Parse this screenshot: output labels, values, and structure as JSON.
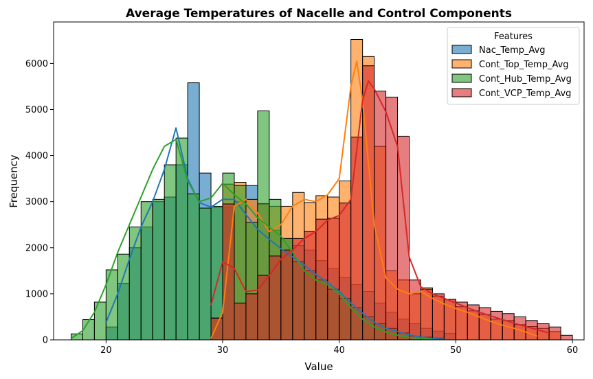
{
  "chart_data": {
    "type": "histogram",
    "title": "Average Temperatures of Nacelle and Control Components",
    "xlabel": "Value",
    "ylabel": "Frequency",
    "xlim": [
      15.5,
      61
    ],
    "ylim": [
      0,
      6900
    ],
    "x_ticks": [
      20,
      30,
      40,
      50,
      60
    ],
    "y_ticks": [
      0,
      1000,
      2000,
      3000,
      4000,
      5000,
      6000
    ],
    "legend": {
      "title": "Features",
      "position": "top-right"
    },
    "bin_width": 1,
    "series": [
      {
        "name": "Nac_Temp_Avg",
        "color": "#1f77b4",
        "bins_start": 20,
        "values": [
          280,
          1230,
          2000,
          2450,
          3000,
          3100,
          3800,
          5580,
          3620,
          2880,
          2880,
          3000,
          3350,
          2960,
          2380,
          2200,
          2050,
          1950,
          1720,
          1550,
          1350,
          1200,
          1050,
          800,
          600,
          450,
          350,
          250,
          190,
          140
        ],
        "kde": [
          [
            20,
            380
          ],
          [
            21,
            1000
          ],
          [
            22,
            1750
          ],
          [
            23,
            2450
          ],
          [
            24,
            3000
          ],
          [
            25,
            3700
          ],
          [
            26,
            4600
          ],
          [
            27,
            3500
          ],
          [
            28,
            2980
          ],
          [
            29,
            2880
          ],
          [
            30,
            3050
          ],
          [
            31,
            3050
          ],
          [
            32,
            2720
          ],
          [
            33,
            2400
          ],
          [
            34,
            2180
          ],
          [
            35,
            1980
          ],
          [
            36,
            1800
          ],
          [
            37,
            1620
          ],
          [
            38,
            1420
          ],
          [
            39,
            1250
          ],
          [
            40,
            1050
          ],
          [
            41,
            800
          ],
          [
            42,
            580
          ],
          [
            43,
            380
          ],
          [
            44,
            250
          ],
          [
            45,
            180
          ],
          [
            46,
            110
          ],
          [
            47,
            60
          ],
          [
            48,
            30
          ],
          [
            49,
            15
          ]
        ]
      },
      {
        "name": "Cont_Top_Temp_Avg",
        "color": "#ff7f0e",
        "bins_start": 29,
        "values": [
          480,
          3380,
          3420,
          3050,
          2950,
          2900,
          2900,
          3200,
          2980,
          3130,
          3100,
          3450,
          6520,
          6150,
          4200,
          1500,
          1300,
          1000,
          1130,
          950,
          880,
          720,
          630,
          550,
          450,
          420,
          330,
          290,
          250,
          180
        ],
        "kde": [
          [
            29,
            30
          ],
          [
            30,
            600
          ],
          [
            31,
            2900
          ],
          [
            32,
            3050
          ],
          [
            33,
            2750
          ],
          [
            34,
            2350
          ],
          [
            35,
            2500
          ],
          [
            36,
            2900
          ],
          [
            37,
            3050
          ],
          [
            38,
            3000
          ],
          [
            39,
            3150
          ],
          [
            40,
            3500
          ],
          [
            41,
            5500
          ],
          [
            41.5,
            6050
          ],
          [
            42,
            5200
          ],
          [
            43,
            2500
          ],
          [
            44,
            1350
          ],
          [
            45,
            1100
          ],
          [
            46,
            1000
          ],
          [
            47,
            1050
          ],
          [
            48,
            900
          ],
          [
            49,
            780
          ],
          [
            50,
            680
          ],
          [
            51,
            600
          ],
          [
            52,
            500
          ],
          [
            53,
            400
          ],
          [
            54,
            320
          ],
          [
            55,
            250
          ],
          [
            56,
            170
          ],
          [
            57,
            80
          ]
        ]
      },
      {
        "name": "Cont_Hub_Temp_Avg",
        "color": "#2ca02c",
        "bins_start": 17,
        "values": [
          130,
          440,
          820,
          1520,
          1860,
          2450,
          3000,
          3050,
          3800,
          4380,
          3170,
          2860,
          2900,
          3620,
          3350,
          2550,
          4970,
          3050,
          2200,
          1700,
          1500,
          1300,
          1100,
          900,
          700,
          500,
          350,
          250,
          150,
          80,
          60,
          40
        ],
        "kde": [
          [
            17,
            30
          ],
          [
            18,
            200
          ],
          [
            19,
            600
          ],
          [
            20,
            1200
          ],
          [
            21,
            1900
          ],
          [
            22,
            2500
          ],
          [
            23,
            3100
          ],
          [
            24,
            3700
          ],
          [
            25,
            4200
          ],
          [
            26,
            4350
          ],
          [
            27,
            3450
          ],
          [
            28,
            3000
          ],
          [
            29,
            3080
          ],
          [
            30,
            3400
          ],
          [
            31,
            3150
          ],
          [
            32,
            2950
          ],
          [
            33,
            2650
          ],
          [
            34,
            2450
          ],
          [
            35,
            2250
          ],
          [
            36,
            1900
          ],
          [
            37,
            1500
          ],
          [
            38,
            1300
          ],
          [
            39,
            1200
          ],
          [
            40,
            1000
          ],
          [
            41,
            700
          ],
          [
            42,
            450
          ],
          [
            43,
            280
          ],
          [
            44,
            170
          ],
          [
            45,
            100
          ],
          [
            46,
            55
          ],
          [
            47,
            30
          ],
          [
            48,
            15
          ]
        ]
      },
      {
        "name": "Cont_VCP_Temp_Avg",
        "color": "#d62728",
        "bins_start": 29,
        "values": [
          470,
          2950,
          800,
          1000,
          1400,
          1820,
          1950,
          2200,
          2350,
          2620,
          2640,
          2970,
          4400,
          5950,
          5400,
          5270,
          4420,
          1300,
          1100,
          1000,
          880,
          820,
          760,
          700,
          620,
          570,
          500,
          420,
          350,
          280,
          100
        ],
        "kde": [
          [
            29,
            750
          ],
          [
            30,
            1700
          ],
          [
            31,
            1550
          ],
          [
            32,
            1050
          ],
          [
            33,
            1080
          ],
          [
            34,
            1400
          ],
          [
            35,
            1750
          ],
          [
            36,
            1950
          ],
          [
            37,
            2200
          ],
          [
            38,
            2350
          ],
          [
            39,
            2600
          ],
          [
            40,
            2700
          ],
          [
            41,
            3050
          ],
          [
            42,
            5200
          ],
          [
            42.5,
            5620
          ],
          [
            43,
            5450
          ],
          [
            44,
            4950
          ],
          [
            45,
            4200
          ],
          [
            46,
            1800
          ],
          [
            47,
            1150
          ],
          [
            48,
            1000
          ],
          [
            49,
            900
          ],
          [
            50,
            800
          ],
          [
            51,
            700
          ],
          [
            52,
            600
          ],
          [
            53,
            520
          ],
          [
            54,
            440
          ],
          [
            55,
            360
          ],
          [
            56,
            290
          ],
          [
            57,
            220
          ],
          [
            58,
            150
          ]
        ]
      }
    ]
  }
}
